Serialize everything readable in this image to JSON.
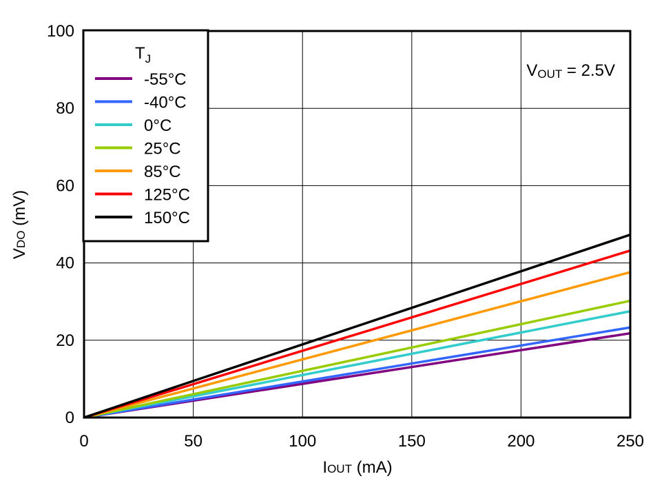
{
  "chart_data": {
    "type": "line",
    "title": "",
    "xlabel": {
      "main": "I",
      "sub": "OUT",
      "unit": " (mA)"
    },
    "ylabel": {
      "main": "V",
      "sub": "DO",
      "unit": " (mV)"
    },
    "xlim": [
      0,
      250
    ],
    "ylim": [
      0,
      100
    ],
    "xticks": [
      0,
      50,
      100,
      150,
      200,
      250
    ],
    "yticks": [
      0,
      20,
      40,
      60,
      80,
      100
    ],
    "grid": true,
    "legend": {
      "title_main": "T",
      "title_sub": "J",
      "position": "top-left"
    },
    "annotation": {
      "main": "V",
      "sub": "OUT",
      "rest": " = 2.5V"
    },
    "series": [
      {
        "name": "-55°C",
        "color": "#800080",
        "x": [
          0,
          250
        ],
        "y": [
          0,
          21.8
        ]
      },
      {
        "name": "-40°C",
        "color": "#3366ff",
        "x": [
          0,
          250
        ],
        "y": [
          0,
          23.3
        ]
      },
      {
        "name": "0°C",
        "color": "#33cccc",
        "x": [
          0,
          250
        ],
        "y": [
          0,
          27.5
        ]
      },
      {
        "name": "25°C",
        "color": "#99cc00",
        "x": [
          0,
          250
        ],
        "y": [
          0,
          30.2
        ]
      },
      {
        "name": "85°C",
        "color": "#ff9900",
        "x": [
          0,
          250
        ],
        "y": [
          0,
          37.6
        ]
      },
      {
        "name": "125°C",
        "color": "#ff0000",
        "x": [
          0,
          250
        ],
        "y": [
          0,
          43.2
        ]
      },
      {
        "name": "150°C",
        "color": "#000000",
        "x": [
          0,
          250
        ],
        "y": [
          0,
          47.3
        ]
      }
    ]
  }
}
